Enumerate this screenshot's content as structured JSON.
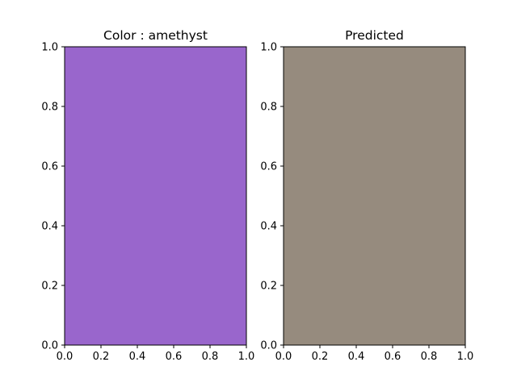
{
  "chart_data": [
    {
      "type": "color_swatch",
      "title": "Color : amethyst",
      "fill_color": "#9966cc",
      "xlim": [
        0,
        1
      ],
      "ylim": [
        0,
        1
      ],
      "x_ticks": [
        "0.0",
        "0.2",
        "0.4",
        "0.6",
        "0.8",
        "1.0"
      ],
      "y_ticks": [
        "0.0",
        "0.2",
        "0.4",
        "0.6",
        "0.8",
        "1.0"
      ]
    },
    {
      "type": "color_swatch",
      "title": "Predicted",
      "fill_color": "#968b7e",
      "xlim": [
        0,
        1
      ],
      "ylim": [
        0,
        1
      ],
      "x_ticks": [
        "0.0",
        "0.2",
        "0.4",
        "0.6",
        "0.8",
        "1.0"
      ],
      "y_ticks": [
        "0.0",
        "0.2",
        "0.4",
        "0.6",
        "0.8",
        "1.0"
      ]
    }
  ]
}
